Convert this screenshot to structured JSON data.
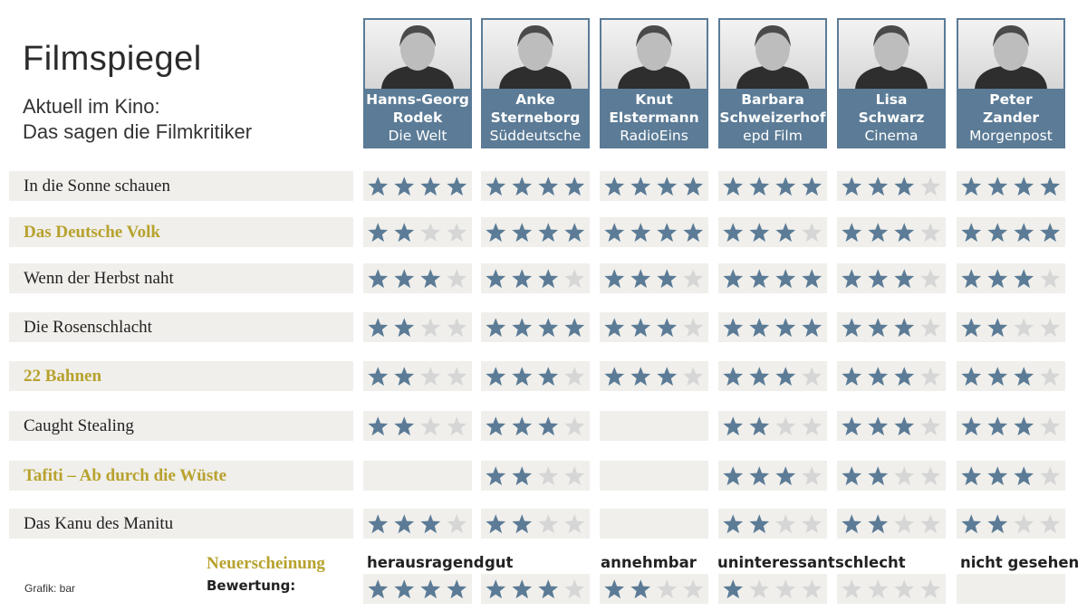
{
  "header": {
    "title": "Filmspiegel",
    "subtitle_line1": "Aktuell im Kino:",
    "subtitle_line2": "Das sagen die Filmkritiker"
  },
  "critics": [
    {
      "name_line1": "Hanns-Georg",
      "name_line2": "Rodek",
      "publication": "Die Welt"
    },
    {
      "name_line1": "Anke",
      "name_line2": "Sterneborg",
      "publication": "Süddeutsche"
    },
    {
      "name_line1": "Knut",
      "name_line2": "Elstermann",
      "publication": "RadioEins"
    },
    {
      "name_line1": "Barbara",
      "name_line2": "Schweizerhof",
      "publication": "epd Film"
    },
    {
      "name_line1": "Lisa",
      "name_line2": "Schwarz",
      "publication": "Cinema"
    },
    {
      "name_line1": "Peter",
      "name_line2": "Zander",
      "publication": "Morgenpost"
    }
  ],
  "films": [
    {
      "title": "In die Sonne schauen",
      "new_release": false,
      "ratings": [
        4,
        4,
        4,
        4,
        3,
        4
      ]
    },
    {
      "title": "Das Deutsche Volk",
      "new_release": true,
      "ratings": [
        2,
        4,
        4,
        3,
        3,
        4
      ]
    },
    {
      "title": "Wenn der Herbst naht",
      "new_release": false,
      "ratings": [
        3,
        3,
        3,
        4,
        3,
        3
      ]
    },
    {
      "title": "Die Rosenschlacht",
      "new_release": false,
      "ratings": [
        2,
        4,
        3,
        4,
        3,
        2
      ]
    },
    {
      "title": "22 Bahnen",
      "new_release": true,
      "ratings": [
        2,
        3,
        3,
        3,
        3,
        3
      ]
    },
    {
      "title": "Caught Stealing",
      "new_release": false,
      "ratings": [
        2,
        3,
        null,
        2,
        3,
        3
      ]
    },
    {
      "title": "Tafiti – Ab durch die Wüste",
      "new_release": true,
      "ratings": [
        null,
        2,
        null,
        3,
        2,
        3
      ]
    },
    {
      "title": "Das Kanu des Manitu",
      "new_release": false,
      "ratings": [
        3,
        2,
        null,
        2,
        2,
        2
      ]
    }
  ],
  "legend": {
    "new_release_label": "Neuerscheinung",
    "rating_label": "Bewertung:",
    "levels": [
      {
        "label": "herausragend",
        "stars": 4
      },
      {
        "label": "gut",
        "stars": 3
      },
      {
        "label": "annehmbar",
        "stars": 2
      },
      {
        "label": "uninteressant",
        "stars": 1
      },
      {
        "label": "schlecht",
        "stars": 0
      },
      {
        "label": "nicht gesehen",
        "stars": null
      }
    ]
  },
  "credit": "Grafik: bar",
  "colors": {
    "star_filled": "#5b7b96",
    "star_empty": "#d6d6d6",
    "row_background": "#f0efeb",
    "new_release_text": "#b7a22e",
    "critic_box": "#5b7b96"
  }
}
